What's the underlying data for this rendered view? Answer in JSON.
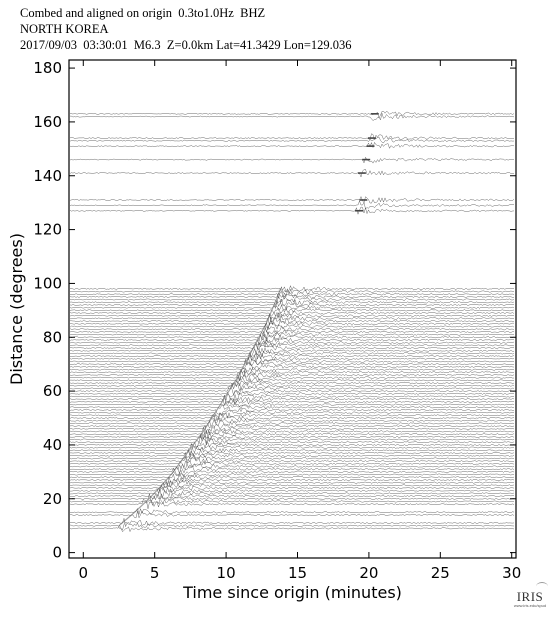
{
  "header": {
    "line1": "Combed and aligned on origin  0.3to1.0Hz  BHZ",
    "line2": "NORTH KOREA",
    "line3": "2017/09/03  03:30:01  M6.3  Z=0.0km Lat=41.3429 Lon=129.036"
  },
  "logo": {
    "text": "IRIS",
    "sub": "www.iris.edu/spud"
  },
  "colors": {
    "trace": "#444444",
    "axis": "#000000",
    "background": "#ffffff"
  },
  "chart_data": {
    "type": "line",
    "title": "",
    "xlabel": "Time since origin (minutes)",
    "ylabel": "Distance (degrees)",
    "xlim": [
      -1,
      30.3
    ],
    "ylim": [
      -2,
      183
    ],
    "xticks": [
      0,
      5,
      10,
      15,
      20,
      25,
      30
    ],
    "yticks": [
      0,
      20,
      40,
      60,
      80,
      100,
      120,
      140,
      160,
      180
    ],
    "grid": false,
    "legend": "none",
    "p_wave_arrival": {
      "distance_deg": [
        10,
        15,
        20,
        25,
        30,
        35,
        40,
        45,
        50,
        55,
        60,
        65,
        70,
        75,
        80,
        85,
        90,
        95,
        98
      ],
      "time_min": [
        2.5,
        3.6,
        4.6,
        5.5,
        6.3,
        7.0,
        7.7,
        8.4,
        9.0,
        9.6,
        10.2,
        10.8,
        11.3,
        11.8,
        12.3,
        12.8,
        13.2,
        13.6,
        13.8
      ]
    },
    "core_phase_arrival": {
      "distance_deg": [
        127,
        131,
        141,
        146,
        151,
        154,
        163
      ],
      "time_min": [
        19.1,
        19.4,
        19.3,
        19.6,
        19.9,
        20.0,
        20.2
      ]
    },
    "trace_distances_deg": [
      9,
      10,
      11,
      14,
      15,
      18,
      19,
      20,
      21,
      22,
      23,
      24,
      25,
      26,
      27,
      28,
      29,
      30,
      31,
      32,
      33,
      34,
      35,
      36,
      37,
      38,
      39,
      40,
      41,
      42,
      43,
      44,
      45,
      46,
      47,
      48,
      49,
      50,
      51,
      52,
      53,
      54,
      55,
      56,
      57,
      58,
      59,
      60,
      61,
      62,
      63,
      64,
      65,
      66,
      67,
      68,
      69,
      70,
      71,
      72,
      73,
      74,
      75,
      76,
      77,
      78,
      79,
      80,
      81,
      82,
      83,
      84,
      85,
      86,
      87,
      88,
      89,
      90,
      91,
      92,
      93,
      94,
      95,
      96,
      97,
      98,
      127,
      129,
      131,
      141,
      146,
      151,
      153,
      154,
      162,
      163
    ]
  }
}
